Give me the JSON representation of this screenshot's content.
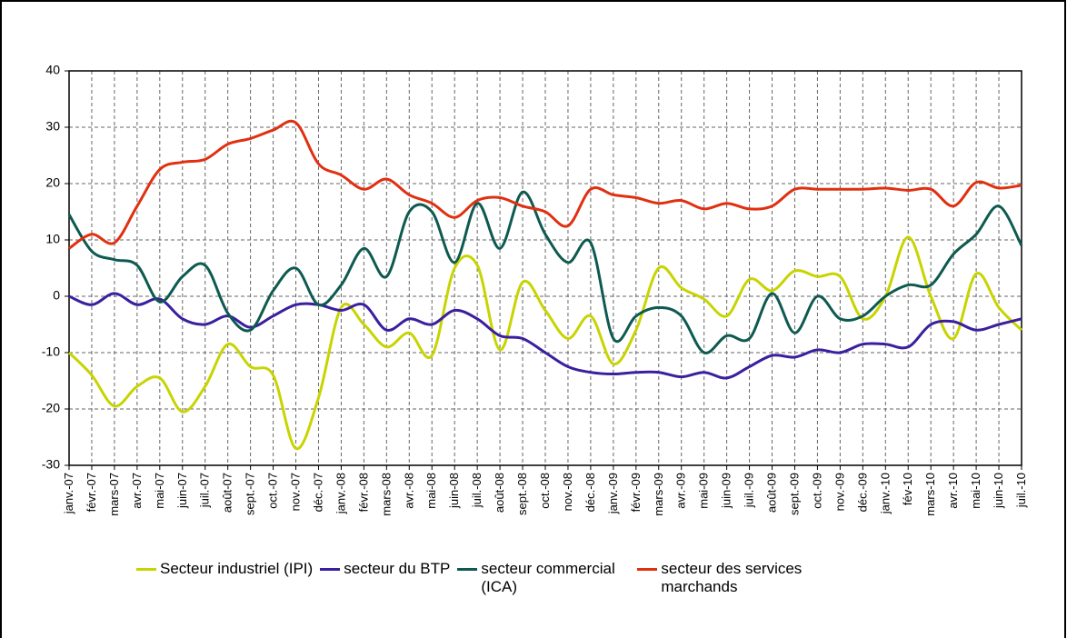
{
  "chart_data": {
    "type": "line",
    "categories": [
      "janv.-07",
      "févr.-07",
      "mars-07",
      "avr.-07",
      "mai-07",
      "juin-07",
      "juil.-07",
      "août-07",
      "sept.-07",
      "oct.-07",
      "nov.-07",
      "déc.-07",
      "janv.-08",
      "févr.-08",
      "mars-08",
      "avr.-08",
      "mai-08",
      "juin-08",
      "juil.-08",
      "août-08",
      "sept.-08",
      "oct.-08",
      "nov.-08",
      "déc.-08",
      "janv.-09",
      "févr.-09",
      "mars-09",
      "avr.-09",
      "mai-09",
      "juin-09",
      "juil.-09",
      "août-09",
      "sept.-09",
      "oct.-09",
      "nov.-09",
      "déc.-09",
      "janv.-10",
      "fév-10",
      "mars-10",
      "avr.-10",
      "mai-10",
      "juin-10",
      "juil.-10"
    ],
    "series": [
      {
        "name": "Secteur industriel (IPI)",
        "color": "#c8d400",
        "values": [
          -10,
          -14,
          -19.5,
          -16,
          -14.5,
          -20.5,
          -16,
          -8.5,
          -12.5,
          -14,
          -27,
          -18,
          -2,
          -5,
          -9,
          -6.5,
          -10.5,
          5,
          5.5,
          -9.5,
          2.5,
          -2.5,
          -7.5,
          -3.5,
          -12,
          -6,
          5,
          1.5,
          -0.5,
          -3.5,
          3,
          1,
          4.5,
          3.5,
          3.5,
          -4,
          0,
          10.5,
          0,
          -7.5,
          4,
          -2,
          -6
        ]
      },
      {
        "name": "secteur du BTP",
        "color": "#3a1f9e",
        "values": [
          0,
          -1.5,
          0.5,
          -1.5,
          -0.5,
          -4,
          -5,
          -3.5,
          -5.5,
          -3.5,
          -1.5,
          -1.5,
          -2.5,
          -1.5,
          -6,
          -4,
          -5,
          -2.5,
          -4,
          -7,
          -7.5,
          -10,
          -12.5,
          -13.5,
          -13.8,
          -13.5,
          -13.5,
          -14.3,
          -13.5,
          -14.5,
          -12.5,
          -10.5,
          -10.8,
          -9.5,
          -10,
          -8.5,
          -8.5,
          -9,
          -5,
          -4.5,
          -6,
          -5,
          -4
        ]
      },
      {
        "name": "secteur commercial (ICA)",
        "color": "#0e5a50",
        "values": [
          14.5,
          8,
          6.5,
          5.5,
          -1,
          3.5,
          5.5,
          -3,
          -6,
          1,
          5,
          -1.5,
          2,
          8.5,
          3.5,
          15,
          15,
          6,
          16.5,
          8.5,
          18.5,
          11,
          6,
          9.5,
          -7.5,
          -3.5,
          -2,
          -3.5,
          -10,
          -7,
          -7.5,
          0.5,
          -6.5,
          0,
          -4,
          -3.5,
          0,
          2,
          2,
          7.5,
          11,
          16,
          9
        ]
      },
      {
        "name": "secteur des services marchands",
        "color": "#e03010",
        "values": [
          8.5,
          11,
          9.5,
          16,
          22.5,
          23.8,
          24.3,
          27,
          28,
          29.5,
          30.8,
          23.5,
          21.5,
          19,
          20.8,
          18,
          16.5,
          14,
          17,
          17.5,
          16,
          15,
          12.5,
          19,
          18,
          17.5,
          16.5,
          17,
          15.5,
          16.5,
          15.5,
          16,
          19,
          19,
          19,
          19,
          19.2,
          18.8,
          19,
          16,
          20.2,
          19.2,
          19.7
        ]
      }
    ],
    "ylim": [
      -30,
      40
    ],
    "yticks": [
      -30,
      -20,
      -10,
      0,
      10,
      20,
      30,
      40
    ],
    "grid": true
  }
}
